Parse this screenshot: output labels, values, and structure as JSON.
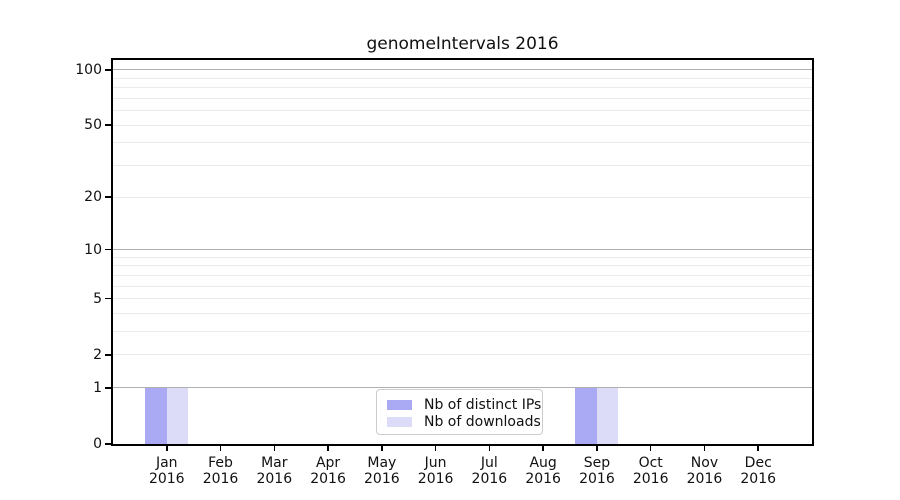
{
  "chart_data": {
    "type": "bar",
    "title": "genomeIntervals 2016",
    "xlabel": "",
    "ylabel": "",
    "categories": [
      "Jan 2016",
      "Feb 2016",
      "Mar 2016",
      "Apr 2016",
      "May 2016",
      "Jun 2016",
      "Jul 2016",
      "Aug 2016",
      "Sep 2016",
      "Oct 2016",
      "Nov 2016",
      "Dec 2016"
    ],
    "category_month_line": [
      "Jan",
      "Feb",
      "Mar",
      "Apr",
      "May",
      "Jun",
      "Jul",
      "Aug",
      "Sep",
      "Oct",
      "Nov",
      "Dec"
    ],
    "category_year_line": "2016",
    "series": [
      {
        "name": "Nb of distinct IPs",
        "color": "#a9a9f4",
        "values": [
          1,
          0,
          0,
          0,
          0,
          0,
          0,
          0,
          1,
          0,
          0,
          0
        ]
      },
      {
        "name": "Nb of downloads",
        "color": "#dcdcf9",
        "values": [
          1,
          0,
          0,
          0,
          0,
          0,
          0,
          0,
          1,
          0,
          0,
          0
        ]
      }
    ],
    "y_scale": "log10(1+y)",
    "ylim": [
      0,
      113
    ],
    "y_tick_values": [
      0,
      1,
      2,
      5,
      10,
      20,
      50,
      100
    ],
    "y_tick_labels": [
      "0",
      "1",
      "2",
      "5",
      "10",
      "20",
      "50",
      "100"
    ],
    "y_major_gridlines": [
      1,
      10,
      100
    ],
    "y_minor_gridlines": [
      2,
      3,
      4,
      5,
      6,
      7,
      8,
      9,
      20,
      30,
      40,
      50,
      60,
      70,
      80,
      90
    ],
    "grid": true,
    "legend_position": "inside-bottom-center",
    "colors": {
      "major_grid": "#b0b0b0",
      "minor_grid": "#ebebeb",
      "spine": "#000000",
      "text": "#111111",
      "legend_border": "#cccccc",
      "background": "#ffffff"
    }
  }
}
